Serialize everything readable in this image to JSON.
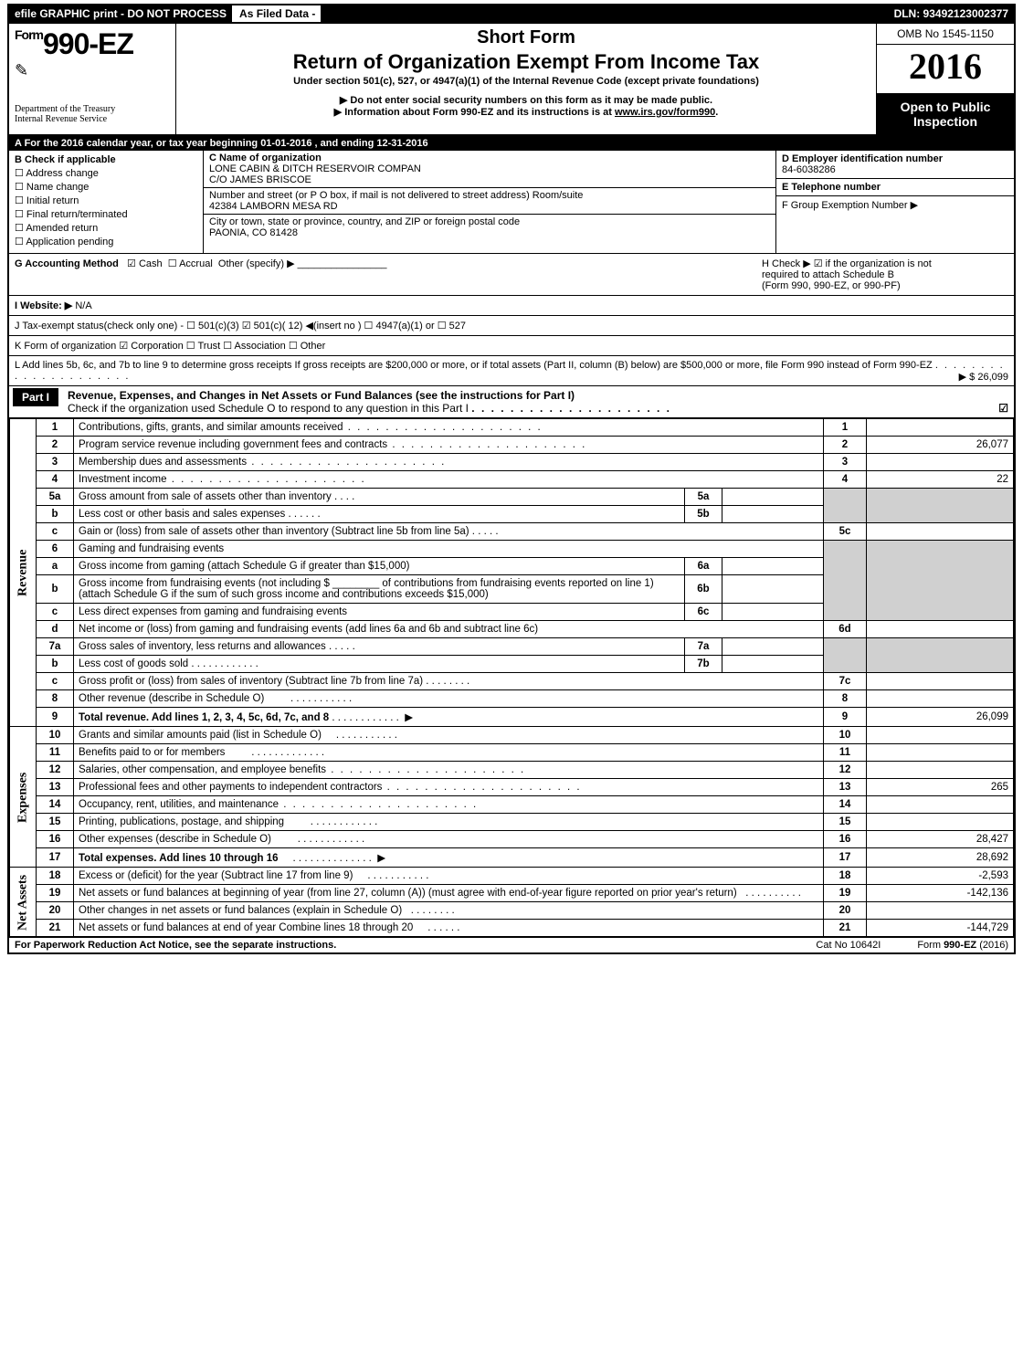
{
  "topbar": {
    "efile": "efile GRAPHIC print - DO NOT PROCESS",
    "asfiled": "As Filed Data -",
    "dln": "DLN: 93492123002377"
  },
  "header": {
    "form_prefix": "Form",
    "form_number": "990-EZ",
    "treasury": "Department of the Treasury",
    "irs": "Internal Revenue Service",
    "short_form": "Short Form",
    "title": "Return of Organization Exempt From Income Tax",
    "under_section": "Under section 501(c), 527, or 4947(a)(1) of the Internal Revenue Code (except private foundations)",
    "notice1": "Do not enter social security numbers on this form as it may be made public.",
    "notice2": "Information about Form 990-EZ and its instructions is at ",
    "notice2_link": "www.irs.gov/form990",
    "omb": "OMB No 1545-1150",
    "year": "2016",
    "open1": "Open to Public",
    "open2": "Inspection"
  },
  "rowA": "A  For the 2016 calendar year, or tax year beginning 01-01-2016            , and ending 12-31-2016",
  "colB": {
    "title": "B  Check if applicable",
    "items": [
      "Address change",
      "Name change",
      "Initial return",
      "Final return/terminated",
      "Amended return",
      "Application pending"
    ]
  },
  "colC": {
    "c_label": "C Name of organization",
    "org_name": "LONE CABIN & DITCH RESERVOIR COMPAN",
    "care_of": "C/O JAMES BRISCOE",
    "street_label": "Number and street (or P O box, if mail is not delivered to street address)   Room/suite",
    "street": "42384 LAMBORN MESA RD",
    "city_label": "City or town, state or province, country, and ZIP or foreign postal code",
    "city": "PAONIA, CO  81428"
  },
  "colDE": {
    "d_label": "D Employer identification number",
    "ein": "84-6038286",
    "e_label": "E Telephone number",
    "e_val": "",
    "f_label": "F Group Exemption Number   ▶"
  },
  "g": {
    "label": "G Accounting Method",
    "cash": "Cash",
    "accrual": "Accrual",
    "other": "Other (specify) ▶"
  },
  "h": {
    "text1": "H   Check ▶   ☑ if the organization is not",
    "text2": "required to attach Schedule B",
    "text3": "(Form 990, 990-EZ, or 990-PF)"
  },
  "i": {
    "label": "I Website: ▶",
    "val": "N/A"
  },
  "j": "J Tax-exempt status(check only one) - ☐ 501(c)(3) ☑ 501(c)( 12) ◀(insert no ) ☐ 4947(a)(1) or ☐ 527",
  "k": "K Form of organization    ☑ Corporation   ☐ Trust   ☐ Association   ☐ Other",
  "l": {
    "text": "L Add lines 5b, 6c, and 7b to line 9 to determine gross receipts  If gross receipts are $200,000 or more, or if total assets (Part II, column (B) below) are $500,000 or more, file Form 990 instead of Form 990-EZ",
    "amount": "▶ $ 26,099"
  },
  "partI": {
    "badge": "Part I",
    "title": "Revenue, Expenses, and Changes in Net Assets or Fund Balances (see the instructions for Part I)",
    "subtitle": "Check if the organization used Schedule O to respond to any question in this Part I",
    "check": "☑"
  },
  "sides": {
    "revenue": "Revenue",
    "expenses": "Expenses",
    "netassets": "Net Assets"
  },
  "lines": {
    "1": {
      "desc": "Contributions, gifts, grants, and similar amounts received",
      "val": ""
    },
    "2": {
      "desc": "Program service revenue including government fees and contracts",
      "val": "26,077"
    },
    "3": {
      "desc": "Membership dues and assessments",
      "val": ""
    },
    "4": {
      "desc": "Investment income",
      "val": "22"
    },
    "5a": {
      "desc": "Gross amount from sale of assets other than inventory"
    },
    "5b": {
      "desc": "Less  cost or other basis and sales expenses"
    },
    "5c": {
      "desc": "Gain or (loss) from sale of assets other than inventory (Subtract line 5b from line 5a)",
      "val": ""
    },
    "6": {
      "desc": "Gaming and fundraising events"
    },
    "6a": {
      "desc": "Gross income from gaming (attach Schedule G if greater than $15,000)"
    },
    "6b": {
      "desc": "Gross income from fundraising events (not including $ ________ of contributions from fundraising events reported on line 1) (attach Schedule G if the sum of such gross income and contributions exceeds $15,000)"
    },
    "6c": {
      "desc": "Less  direct expenses from gaming and fundraising events"
    },
    "6d": {
      "desc": "Net income or (loss) from gaming and fundraising events (add lines 6a and 6b and subtract line 6c)",
      "val": ""
    },
    "7a": {
      "desc": "Gross sales of inventory, less returns and allowances"
    },
    "7b": {
      "desc": "Less  cost of goods sold"
    },
    "7c": {
      "desc": "Gross profit or (loss) from sales of inventory (Subtract line 7b from line 7a)",
      "val": ""
    },
    "8": {
      "desc": "Other revenue (describe in Schedule O)",
      "val": ""
    },
    "9": {
      "desc": "Total revenue. Add lines 1, 2, 3, 4, 5c, 6d, 7c, and 8",
      "val": "26,099"
    },
    "10": {
      "desc": "Grants and similar amounts paid (list in Schedule O)",
      "val": ""
    },
    "11": {
      "desc": "Benefits paid to or for members",
      "val": ""
    },
    "12": {
      "desc": "Salaries, other compensation, and employee benefits",
      "val": ""
    },
    "13": {
      "desc": "Professional fees and other payments to independent contractors",
      "val": "265"
    },
    "14": {
      "desc": "Occupancy, rent, utilities, and maintenance",
      "val": ""
    },
    "15": {
      "desc": "Printing, publications, postage, and shipping",
      "val": ""
    },
    "16": {
      "desc": "Other expenses (describe in Schedule O)",
      "val": "28,427"
    },
    "17": {
      "desc": "Total expenses. Add lines 10 through 16",
      "val": "28,692"
    },
    "18": {
      "desc": "Excess or (deficit) for the year (Subtract line 17 from line 9)",
      "val": "-2,593"
    },
    "19": {
      "desc": "Net assets or fund balances at beginning of year (from line 27, column (A)) (must agree with end-of-year figure reported on prior year's return)",
      "val": "-142,136"
    },
    "20": {
      "desc": "Other changes in net assets or fund balances (explain in Schedule O)",
      "val": ""
    },
    "21": {
      "desc": "Net assets or fund balances at end of year  Combine lines 18 through 20",
      "val": "-144,729"
    }
  },
  "footer": {
    "left": "For Paperwork Reduction Act Notice, see the separate instructions.",
    "mid": "Cat No 10642I",
    "right": "Form 990-EZ (2016)"
  }
}
